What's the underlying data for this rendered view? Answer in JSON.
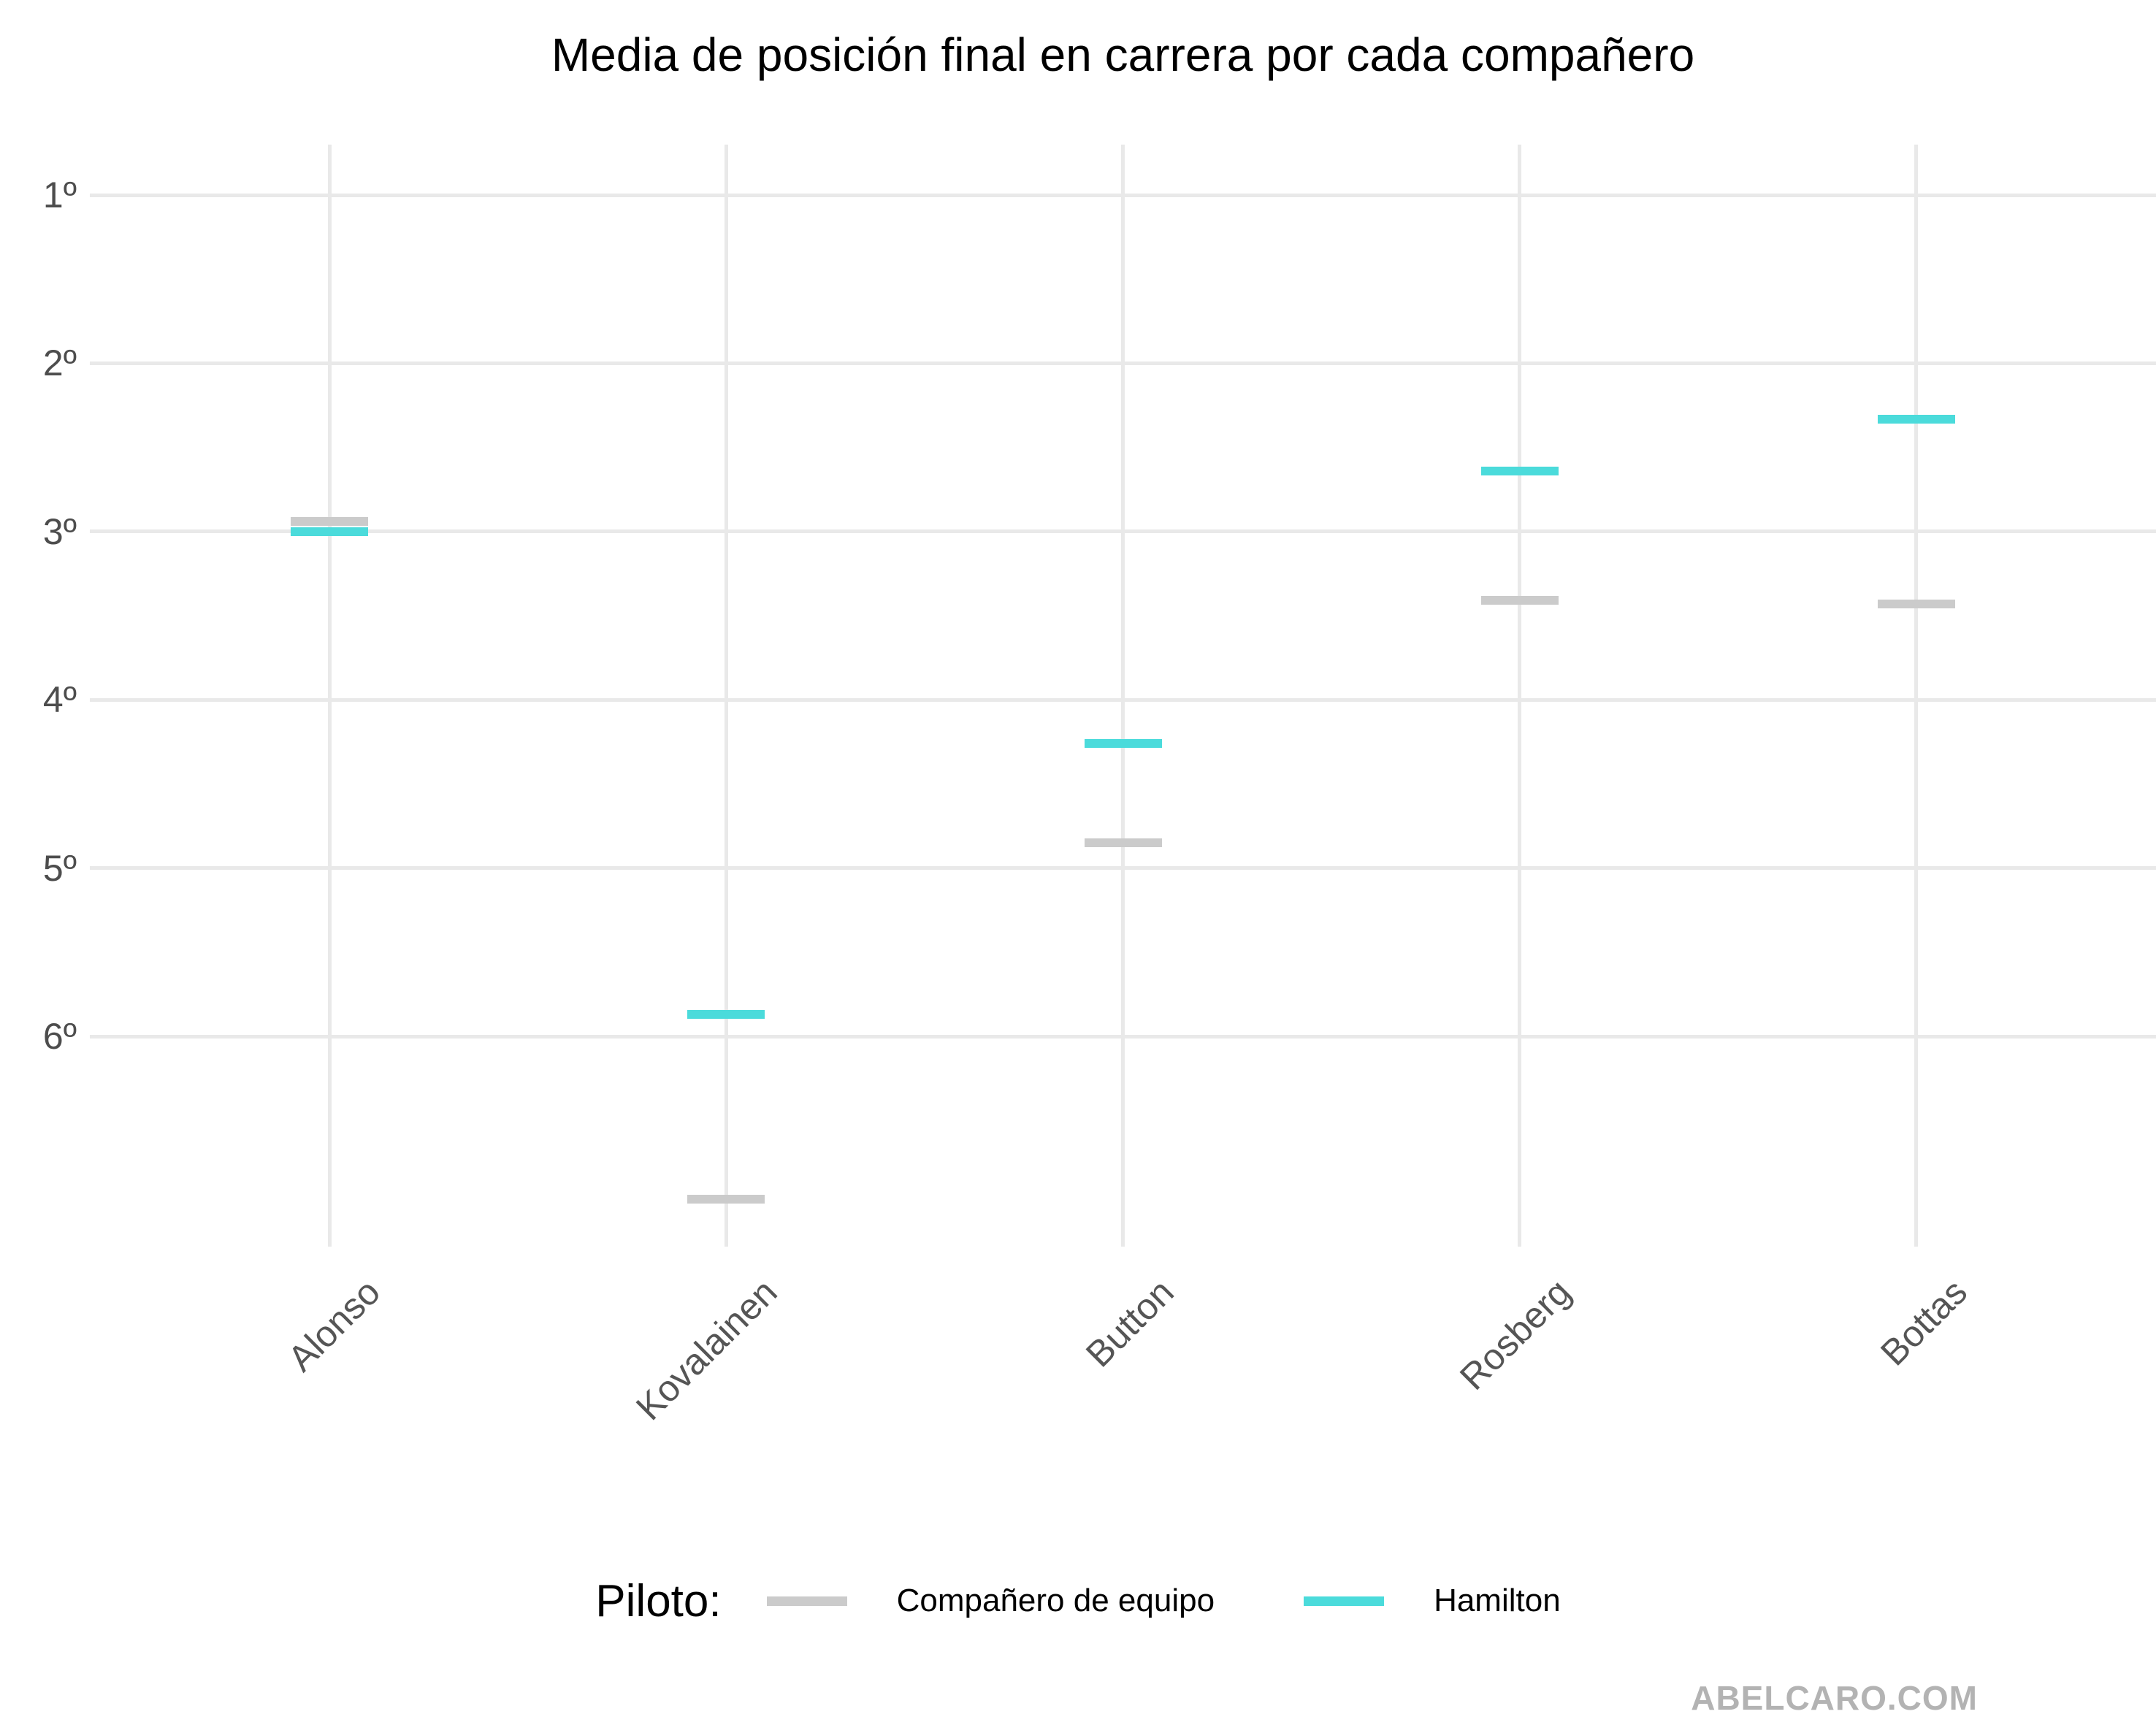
{
  "title": "Media de posición final en carrera por cada compañero",
  "watermark": "ABELCARO.COM",
  "legend": {
    "label": "Piloto:",
    "items": [
      {
        "name": "Compañero de equipo",
        "color": "#cbcbcb"
      },
      {
        "name": "Hamilton",
        "color": "#4bdbdb"
      }
    ]
  },
  "chart_data": {
    "type": "scatter",
    "marker": "horizontal-dash",
    "title": "Media de posición final en carrera por cada compañero",
    "categories": [
      "Alonso",
      "Kovalainen",
      "Button",
      "Rosberg",
      "Bottas"
    ],
    "series": [
      {
        "name": "Compañero de equipo",
        "color": "#cbcbcb",
        "values": [
          2.94,
          6.97,
          4.85,
          3.41,
          3.43
        ]
      },
      {
        "name": "Hamilton",
        "color": "#4bdbdb",
        "values": [
          3.0,
          5.87,
          4.26,
          2.64,
          2.33
        ]
      }
    ],
    "xlabel": "",
    "ylabel": "",
    "y_ticks": [
      "1º",
      "2º",
      "3º",
      "4º",
      "5º",
      "6º"
    ],
    "y_tick_values": [
      1,
      2,
      3,
      4,
      5,
      6
    ],
    "ylim": [
      0.7,
      7.25
    ],
    "y_inverted": true,
    "grid": true,
    "gridline_color": "#e9e9e9",
    "legend_position": "bottom",
    "legend_title": "Piloto:"
  }
}
